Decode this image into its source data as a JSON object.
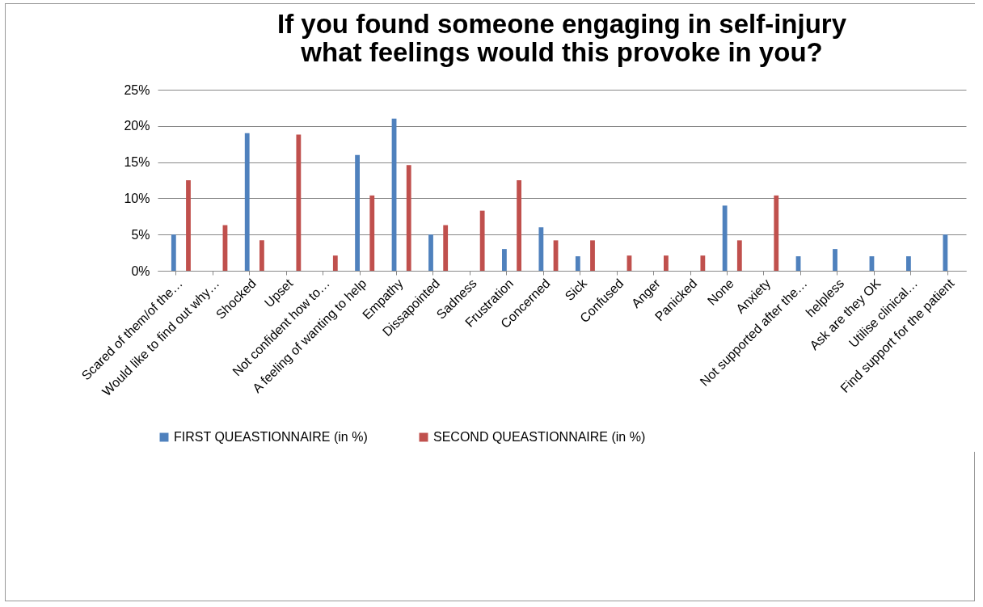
{
  "chart_data": {
    "type": "bar",
    "title": "If you found someone engaging in self-injury\nwhat feelings would this provoke in you?",
    "categories": [
      "Scared of them/of the…",
      "Would like to find out why…",
      "Shocked",
      "Upset",
      "Not confident how to…",
      "A feeling of wanting to help",
      "Empathy",
      "Dissapointed",
      "Sadness",
      "Frustration",
      "Concerned",
      "Sick",
      "Confused",
      "Anger",
      "Panicked",
      "None",
      "Anxiety",
      "Not supported after the…",
      "helpless",
      "Ask are they OK",
      "Utilise clinical…",
      "Find support for the patient"
    ],
    "series": [
      {
        "name": "FIRST QUEASTIONNAIRE (in %)",
        "color": "#4f81bd",
        "values": [
          5,
          null,
          19,
          null,
          null,
          16,
          21,
          5,
          null,
          3,
          6,
          2,
          null,
          null,
          null,
          9,
          null,
          2,
          3,
          2,
          2,
          5
        ]
      },
      {
        "name": "SECOND QUEASTIONNAIRE (in %)",
        "color": "#c0504d",
        "values": [
          12.5,
          6.3,
          4.2,
          18.8,
          2.1,
          10.4,
          14.6,
          6.3,
          8.3,
          12.5,
          4.2,
          4.2,
          2.1,
          2.1,
          2.1,
          4.2,
          10.4,
          null,
          null,
          null,
          null,
          null
        ]
      }
    ],
    "ylim": [
      0,
      25
    ],
    "yticks": [
      {
        "value": 0,
        "label": "0%"
      },
      {
        "value": 5,
        "label": "5%"
      },
      {
        "value": 10,
        "label": "10%"
      },
      {
        "value": 15,
        "label": "15%"
      },
      {
        "value": 20,
        "label": "20%"
      },
      {
        "value": 25,
        "label": "25%"
      }
    ],
    "grid": "y",
    "legend": "bottom"
  }
}
